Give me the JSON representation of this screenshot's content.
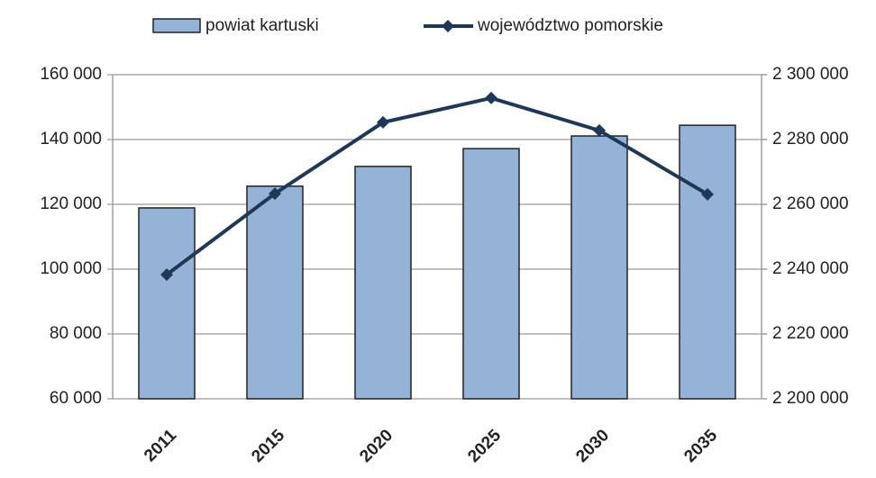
{
  "chart_data": {
    "type": "bar_line",
    "categories": [
      "2011",
      "2015",
      "2020",
      "2025",
      "2030",
      "2035"
    ],
    "series": [
      {
        "name": "powiat kartuski",
        "type": "bar",
        "color": "#95b3d7",
        "values": [
          118900,
          125600,
          131700,
          137200,
          141100,
          144400
        ]
      },
      {
        "name": "województwo pomorskie",
        "type": "line",
        "color": "#1f3855",
        "axis": "y2",
        "values": [
          2238300,
          2263300,
          2285300,
          2292800,
          2282800,
          2263100
        ]
      }
    ],
    "ylim": [
      60000,
      160000
    ],
    "yticks": [
      {
        "value": 60000,
        "label": "60 000"
      },
      {
        "value": 80000,
        "label": "80 000"
      },
      {
        "value": 100000,
        "label": "100 000"
      },
      {
        "value": 120000,
        "label": "120 000"
      },
      {
        "value": 140000,
        "label": "140 000"
      },
      {
        "value": 160000,
        "label": "160 000"
      }
    ],
    "y2lim": [
      2200000,
      2300000
    ],
    "y2ticks": [
      {
        "value": 2200000,
        "label": "2 200 000"
      },
      {
        "value": 2220000,
        "label": "2 220 000"
      },
      {
        "value": 2240000,
        "label": "2 240 000"
      },
      {
        "value": 2260000,
        "label": "2 260 000"
      },
      {
        "value": 2280000,
        "label": "2 280 000"
      },
      {
        "value": 2300000,
        "label": "2 300 000"
      }
    ],
    "grid": true,
    "legend": "top"
  }
}
